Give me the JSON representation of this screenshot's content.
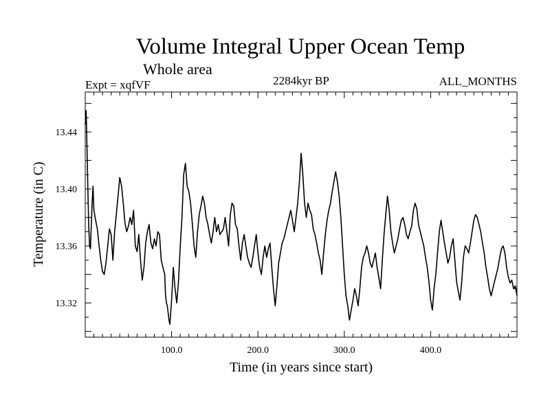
{
  "chart_data": {
    "type": "line",
    "title": "Volume Integral Upper Ocean Temp",
    "subtitle": "Whole area",
    "annotations": {
      "experiment": "Expt = xqfVF",
      "period": "2284kyr BP",
      "months": "ALL_MONTHS"
    },
    "xlabel": "Time (in years since start)",
    "ylabel": "Temperature (in C)",
    "xlim": [
      0,
      500
    ],
    "ylim": [
      13.296,
      13.468
    ],
    "x_ticks": [
      100,
      200,
      300,
      400
    ],
    "x_tick_labels": [
      "100.0",
      "200.0",
      "300.0",
      "400.0"
    ],
    "y_ticks": [
      13.32,
      13.36,
      13.4,
      13.44
    ],
    "y_tick_labels": [
      "13.32",
      "13.36",
      "13.40",
      "13.44"
    ],
    "grid": false,
    "series": [
      {
        "name": "Temperature",
        "points": [
          [
            0,
            13.445
          ],
          [
            1,
            13.455
          ],
          [
            2,
            13.43
          ],
          [
            3,
            13.4
          ],
          [
            4,
            13.375
          ],
          [
            5,
            13.36
          ],
          [
            6,
            13.358
          ],
          [
            8,
            13.39
          ],
          [
            9,
            13.402
          ],
          [
            10,
            13.385
          ],
          [
            12,
            13.378
          ],
          [
            14,
            13.372
          ],
          [
            16,
            13.36
          ],
          [
            18,
            13.35
          ],
          [
            20,
            13.342
          ],
          [
            22,
            13.34
          ],
          [
            24,
            13.348
          ],
          [
            26,
            13.36
          ],
          [
            28,
            13.372
          ],
          [
            30,
            13.368
          ],
          [
            32,
            13.35
          ],
          [
            34,
            13.37
          ],
          [
            36,
            13.382
          ],
          [
            38,
            13.395
          ],
          [
            40,
            13.408
          ],
          [
            42,
            13.402
          ],
          [
            44,
            13.39
          ],
          [
            46,
            13.376
          ],
          [
            48,
            13.37
          ],
          [
            50,
            13.374
          ],
          [
            52,
            13.38
          ],
          [
            54,
            13.375
          ],
          [
            56,
            13.385
          ],
          [
            58,
            13.36
          ],
          [
            60,
            13.356
          ],
          [
            62,
            13.368
          ],
          [
            64,
            13.35
          ],
          [
            66,
            13.336
          ],
          [
            68,
            13.345
          ],
          [
            70,
            13.362
          ],
          [
            72,
            13.37
          ],
          [
            74,
            13.375
          ],
          [
            76,
            13.362
          ],
          [
            78,
            13.358
          ],
          [
            80,
            13.365
          ],
          [
            82,
            13.36
          ],
          [
            84,
            13.37
          ],
          [
            86,
            13.368
          ],
          [
            88,
            13.35
          ],
          [
            90,
            13.345
          ],
          [
            92,
            13.34
          ],
          [
            93,
            13.325
          ],
          [
            94,
            13.32
          ],
          [
            95,
            13.318
          ],
          [
            96,
            13.313
          ],
          [
            97,
            13.308
          ],
          [
            98,
            13.305
          ],
          [
            100,
            13.322
          ],
          [
            102,
            13.345
          ],
          [
            104,
            13.33
          ],
          [
            106,
            13.32
          ],
          [
            108,
            13.335
          ],
          [
            110,
            13.36
          ],
          [
            112,
            13.38
          ],
          [
            113,
            13.395
          ],
          [
            114,
            13.41
          ],
          [
            116,
            13.418
          ],
          [
            118,
            13.402
          ],
          [
            120,
            13.398
          ],
          [
            122,
            13.39
          ],
          [
            124,
            13.376
          ],
          [
            126,
            13.36
          ],
          [
            128,
            13.352
          ],
          [
            130,
            13.37
          ],
          [
            132,
            13.382
          ],
          [
            134,
            13.388
          ],
          [
            136,
            13.395
          ],
          [
            138,
            13.39
          ],
          [
            140,
            13.38
          ],
          [
            142,
            13.375
          ],
          [
            144,
            13.368
          ],
          [
            146,
            13.362
          ],
          [
            148,
            13.37
          ],
          [
            150,
            13.38
          ],
          [
            152,
            13.37
          ],
          [
            154,
            13.375
          ],
          [
            156,
            13.368
          ],
          [
            158,
            13.37
          ],
          [
            160,
            13.372
          ],
          [
            162,
            13.38
          ],
          [
            164,
            13.37
          ],
          [
            166,
            13.36
          ],
          [
            168,
            13.382
          ],
          [
            170,
            13.39
          ],
          [
            172,
            13.388
          ],
          [
            174,
            13.375
          ],
          [
            176,
            13.372
          ],
          [
            178,
            13.36
          ],
          [
            180,
            13.35
          ],
          [
            182,
            13.362
          ],
          [
            184,
            13.368
          ],
          [
            186,
            13.36
          ],
          [
            188,
            13.352
          ],
          [
            190,
            13.348
          ],
          [
            192,
            13.345
          ],
          [
            194,
            13.352
          ],
          [
            196,
            13.36
          ],
          [
            198,
            13.368
          ],
          [
            200,
            13.355
          ],
          [
            202,
            13.345
          ],
          [
            204,
            13.34
          ],
          [
            206,
            13.352
          ],
          [
            208,
            13.36
          ],
          [
            210,
            13.352
          ],
          [
            212,
            13.358
          ],
          [
            214,
            13.362
          ],
          [
            216,
            13.345
          ],
          [
            218,
            13.33
          ],
          [
            220,
            13.318
          ],
          [
            222,
            13.332
          ],
          [
            224,
            13.348
          ],
          [
            226,
            13.355
          ],
          [
            228,
            13.362
          ],
          [
            230,
            13.365
          ],
          [
            232,
            13.37
          ],
          [
            234,
            13.375
          ],
          [
            236,
            13.38
          ],
          [
            238,
            13.385
          ],
          [
            240,
            13.378
          ],
          [
            242,
            13.37
          ],
          [
            244,
            13.38
          ],
          [
            246,
            13.39
          ],
          [
            248,
            13.405
          ],
          [
            250,
            13.425
          ],
          [
            252,
            13.41
          ],
          [
            254,
            13.39
          ],
          [
            256,
            13.38
          ],
          [
            258,
            13.39
          ],
          [
            260,
            13.385
          ],
          [
            262,
            13.382
          ],
          [
            264,
            13.372
          ],
          [
            266,
            13.368
          ],
          [
            268,
            13.362
          ],
          [
            270,
            13.355
          ],
          [
            272,
            13.35
          ],
          [
            274,
            13.34
          ],
          [
            276,
            13.355
          ],
          [
            278,
            13.368
          ],
          [
            280,
            13.378
          ],
          [
            282,
            13.385
          ],
          [
            284,
            13.39
          ],
          [
            286,
            13.398
          ],
          [
            288,
            13.405
          ],
          [
            290,
            13.412
          ],
          [
            292,
            13.405
          ],
          [
            294,
            13.395
          ],
          [
            296,
            13.38
          ],
          [
            298,
            13.36
          ],
          [
            300,
            13.34
          ],
          [
            302,
            13.325
          ],
          [
            304,
            13.318
          ],
          [
            306,
            13.308
          ],
          [
            308,
            13.315
          ],
          [
            310,
            13.322
          ],
          [
            312,
            13.33
          ],
          [
            314,
            13.325
          ],
          [
            316,
            13.318
          ],
          [
            318,
            13.33
          ],
          [
            320,
            13.345
          ],
          [
            322,
            13.352
          ],
          [
            324,
            13.355
          ],
          [
            326,
            13.36
          ],
          [
            328,
            13.355
          ],
          [
            330,
            13.348
          ],
          [
            332,
            13.345
          ],
          [
            334,
            13.35
          ],
          [
            336,
            13.355
          ],
          [
            338,
            13.345
          ],
          [
            340,
            13.338
          ],
          [
            342,
            13.33
          ],
          [
            344,
            13.35
          ],
          [
            346,
            13.368
          ],
          [
            348,
            13.382
          ],
          [
            350,
            13.395
          ],
          [
            352,
            13.385
          ],
          [
            354,
            13.37
          ],
          [
            356,
            13.362
          ],
          [
            358,
            13.355
          ],
          [
            360,
            13.36
          ],
          [
            362,
            13.365
          ],
          [
            364,
            13.372
          ],
          [
            366,
            13.378
          ],
          [
            368,
            13.38
          ],
          [
            370,
            13.375
          ],
          [
            372,
            13.368
          ],
          [
            374,
            13.365
          ],
          [
            376,
            13.37
          ],
          [
            378,
            13.374
          ],
          [
            380,
            13.385
          ],
          [
            382,
            13.39
          ],
          [
            384,
            13.386
          ],
          [
            386,
            13.375
          ],
          [
            388,
            13.37
          ],
          [
            390,
            13.365
          ],
          [
            392,
            13.36
          ],
          [
            394,
            13.352
          ],
          [
            396,
            13.345
          ],
          [
            398,
            13.335
          ],
          [
            400,
            13.322
          ],
          [
            402,
            13.315
          ],
          [
            404,
            13.33
          ],
          [
            406,
            13.34
          ],
          [
            408,
            13.355
          ],
          [
            410,
            13.37
          ],
          [
            412,
            13.378
          ],
          [
            414,
            13.37
          ],
          [
            416,
            13.362
          ],
          [
            418,
            13.355
          ],
          [
            420,
            13.348
          ],
          [
            422,
            13.352
          ],
          [
            424,
            13.36
          ],
          [
            426,
            13.365
          ],
          [
            428,
            13.35
          ],
          [
            430,
            13.335
          ],
          [
            432,
            13.328
          ],
          [
            434,
            13.322
          ],
          [
            436,
            13.335
          ],
          [
            438,
            13.352
          ],
          [
            440,
            13.36
          ],
          [
            442,
            13.358
          ],
          [
            444,
            13.355
          ],
          [
            446,
            13.362
          ],
          [
            448,
            13.37
          ],
          [
            450,
            13.378
          ],
          [
            452,
            13.382
          ],
          [
            454,
            13.38
          ],
          [
            456,
            13.375
          ],
          [
            458,
            13.37
          ],
          [
            460,
            13.362
          ],
          [
            462,
            13.355
          ],
          [
            464,
            13.345
          ],
          [
            466,
            13.338
          ],
          [
            468,
            13.33
          ],
          [
            470,
            13.325
          ],
          [
            472,
            13.33
          ],
          [
            474,
            13.335
          ],
          [
            476,
            13.34
          ],
          [
            478,
            13.345
          ],
          [
            480,
            13.352
          ],
          [
            482,
            13.358
          ],
          [
            484,
            13.36
          ],
          [
            486,
            13.355
          ],
          [
            488,
            13.345
          ],
          [
            490,
            13.338
          ],
          [
            492,
            13.334
          ],
          [
            494,
            13.336
          ],
          [
            496,
            13.33
          ],
          [
            498,
            13.332
          ],
          [
            500,
            13.325
          ]
        ]
      }
    ]
  }
}
